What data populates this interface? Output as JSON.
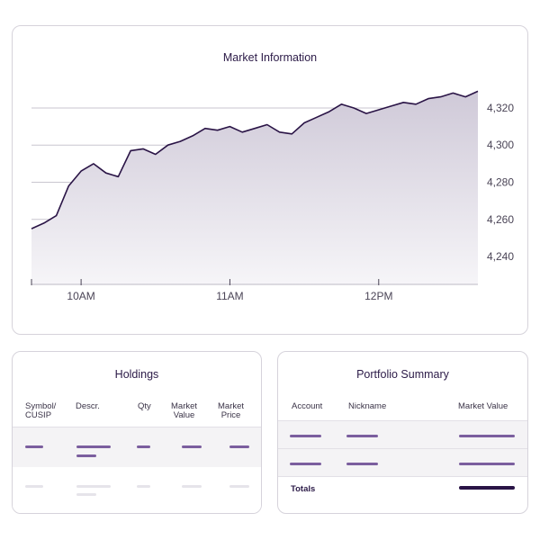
{
  "chart_data": {
    "type": "area",
    "title": "Market Information",
    "xlabel": "",
    "ylabel": "",
    "ylim": [
      4225,
      4335
    ],
    "x_ticks": [
      "10AM",
      "11AM",
      "12PM"
    ],
    "y_ticks": [
      4240,
      4260,
      4280,
      4300,
      4320
    ],
    "y_tick_labels": [
      "4,240",
      "4,260",
      "4,280",
      "4,300",
      "4,320"
    ],
    "grid": true,
    "x_start": "9:40",
    "x_end": "12:40",
    "x": [
      "9:40",
      "9:45",
      "9:50",
      "9:55",
      "10:00",
      "10:05",
      "10:10",
      "10:15",
      "10:20",
      "10:25",
      "10:30",
      "10:35",
      "10:40",
      "10:45",
      "10:50",
      "10:55",
      "11:00",
      "11:05",
      "11:10",
      "11:15",
      "11:20",
      "11:25",
      "11:30",
      "11:35",
      "11:40",
      "11:45",
      "11:50",
      "11:55",
      "12:00",
      "12:05",
      "12:10",
      "12:15",
      "12:20",
      "12:25",
      "12:30",
      "12:35",
      "12:40"
    ],
    "values": [
      4255,
      4258,
      4262,
      4278,
      4286,
      4290,
      4285,
      4283,
      4297,
      4298,
      4295,
      4300,
      4302,
      4305,
      4309,
      4308,
      4310,
      4307,
      4309,
      4311,
      4307,
      4306,
      4312,
      4315,
      4318,
      4322,
      4320,
      4317,
      4319,
      4321,
      4323,
      4322,
      4325,
      4326,
      4328,
      4326,
      4329
    ]
  },
  "holdings": {
    "title": "Holdings",
    "columns": [
      "Symbol/\nCUSIP",
      "Descr.",
      "Qty",
      "Market\nValue",
      "Market\nPrice"
    ]
  },
  "portfolio_summary": {
    "title": "Portfolio Summary",
    "columns": [
      "Account",
      "Nickname",
      "Market Value"
    ],
    "totals_label": "Totals"
  },
  "colors": {
    "line": "#2a1446",
    "placeholder_active": "#7b5e9e",
    "placeholder_muted": "#e6e4ea",
    "row_alt": "#f4f3f5"
  }
}
